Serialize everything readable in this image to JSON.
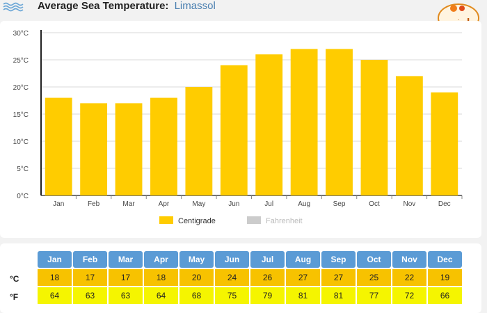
{
  "header": {
    "title": "Average Sea Temperature:",
    "location": "Limassol"
  },
  "logo": {
    "text": "ایشم"
  },
  "chart_data": {
    "type": "bar",
    "categories": [
      "Jan",
      "Feb",
      "Mar",
      "Apr",
      "May",
      "Jun",
      "Jul",
      "Aug",
      "Sep",
      "Oct",
      "Nov",
      "Dec"
    ],
    "series": [
      {
        "name": "Centigrade",
        "values": [
          18,
          17,
          17,
          18,
          20,
          24,
          26,
          27,
          27,
          25,
          22,
          19
        ],
        "color": "#ffcc00"
      }
    ],
    "legend_extra": {
      "name": "Fahrenheit",
      "color": "#cccccc"
    },
    "y_ticks": [
      0,
      5,
      10,
      15,
      20,
      25,
      30
    ],
    "y_tick_suffix": "°C",
    "ylim": [
      0,
      30
    ],
    "grid": true,
    "legend_position": "bottom-center",
    "xlabel": "",
    "ylabel": ""
  },
  "table": {
    "months": [
      "Jan",
      "Feb",
      "Mar",
      "Apr",
      "May",
      "Jun",
      "Jul",
      "Aug",
      "Sep",
      "Oct",
      "Nov",
      "Dec"
    ],
    "celsius_label": "°C",
    "fahrenheit_label": "°F",
    "celsius": [
      "18",
      "17",
      "17",
      "18",
      "20",
      "24",
      "26",
      "27",
      "27",
      "25",
      "22",
      "19"
    ],
    "fahrenheit": [
      "64",
      "63",
      "63",
      "64",
      "68",
      "75",
      "79",
      "81",
      "81",
      "77",
      "72",
      "66"
    ]
  }
}
